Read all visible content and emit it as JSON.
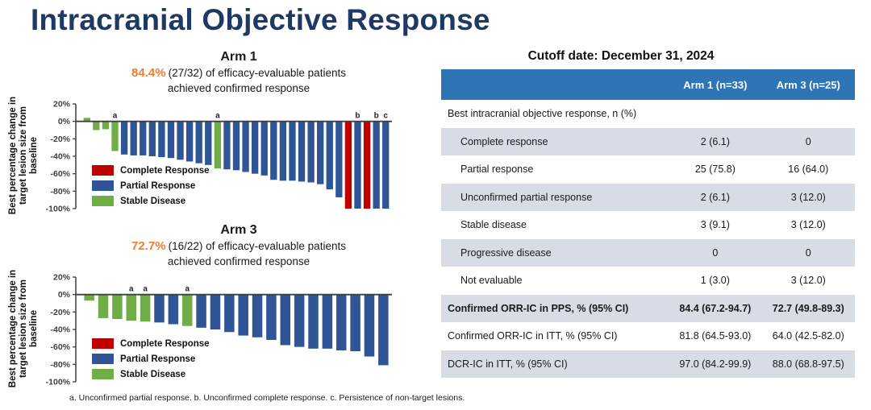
{
  "page": {
    "title": "Intracranial Objective Response"
  },
  "colors": {
    "CR": "#C00000",
    "PR": "#2F5597",
    "SD": "#70AD47",
    "axis": "#3F3F3F",
    "title_navy": "#1F3864",
    "accent_orange": "#ED7D31",
    "table_header_blue": "#2E75B6",
    "row_shade": "#D7DCE5"
  },
  "legend": [
    {
      "label": "Complete Response",
      "type": "CR"
    },
    {
      "label": "Partial Response",
      "type": "PR"
    },
    {
      "label": "Stable Disease",
      "type": "SD"
    }
  ],
  "chart_data": [
    {
      "type": "bar",
      "title": "Arm 1",
      "highlight": "84.4%",
      "subtitle": "(27/32) of efficacy-evaluable patients",
      "subtitle2": "achieved confirmed response",
      "ylabel_lines": [
        "Best percentage change in",
        "target lesion size from",
        "baseline"
      ],
      "ylabel": "Best percentage change in target lesion size from baseline",
      "yticks": [
        20,
        0,
        -20,
        -40,
        -60,
        -80,
        -100
      ],
      "ylim": [
        -100,
        20
      ],
      "grid": false,
      "values": [
        4,
        -10,
        -9,
        -34,
        -38,
        -39,
        -39,
        -40,
        -41,
        -42,
        -44,
        -46,
        -48,
        -50,
        -54,
        -55,
        -56,
        -58,
        -60,
        -62,
        -67,
        -68,
        -68,
        -69,
        -70,
        -72,
        -78,
        -87,
        -100,
        -100,
        -100,
        -100,
        -100
      ],
      "types": [
        "SD",
        "SD",
        "SD",
        "SD",
        "PR",
        "PR",
        "PR",
        "PR",
        "PR",
        "PR",
        "PR",
        "PR",
        "PR",
        "PR",
        "SD",
        "PR",
        "PR",
        "PR",
        "PR",
        "PR",
        "PR",
        "PR",
        "PR",
        "PR",
        "PR",
        "PR",
        "PR",
        "PR",
        "CR",
        "PR",
        "CR",
        "PR",
        "PR"
      ],
      "point_labels": {
        "3": "a",
        "14": "a",
        "29": "b",
        "31": "b",
        "32": "c"
      }
    },
    {
      "type": "bar",
      "title": "Arm 3",
      "highlight": "72.7%",
      "subtitle": "(16/22) of efficacy-evaluable patients",
      "subtitle2": "achieved confirmed response",
      "ylabel_lines": [
        "Best percentage change in",
        "target lesion size from",
        "baseline"
      ],
      "ylabel": "Best percentage change in target lesion size from baseline",
      "yticks": [
        20,
        0,
        -20,
        -40,
        -60,
        -80,
        -100
      ],
      "ylim": [
        -100,
        20
      ],
      "grid": false,
      "values": [
        -7,
        -27,
        -28,
        -30,
        -31,
        -32,
        -34,
        -36,
        -38,
        -40,
        -43,
        -47,
        -49,
        -52,
        -58,
        -60,
        -62,
        -62,
        -64,
        -65,
        -71,
        -81
      ],
      "types": [
        "SD",
        "SD",
        "SD",
        "SD",
        "SD",
        "PR",
        "PR",
        "SD",
        "PR",
        "PR",
        "PR",
        "PR",
        "PR",
        "PR",
        "PR",
        "PR",
        "PR",
        "PR",
        "PR",
        "PR",
        "PR",
        "PR"
      ],
      "point_labels": {
        "3": "a",
        "4": "a",
        "7": "a"
      }
    }
  ],
  "footnote": "a. Unconfirmed partial response. b. Unconfirmed complete response. c. Persistence of non-target lesions.",
  "cutoff_heading": "Cutoff date: December 31, 2024",
  "table": {
    "header": [
      "",
      "Arm 1 (n=33)",
      "Arm 3 (n=25)"
    ],
    "rows": [
      {
        "label": "Best intracranial objective response, n (%)",
        "arm1": "",
        "arm3": ""
      },
      {
        "label": "Complete response",
        "arm1": "2 (6.1)",
        "arm3": "0"
      },
      {
        "label": "Partial response",
        "arm1": "25 (75.8)",
        "arm3": "16 (64.0)"
      },
      {
        "label": "Unconfirmed partial response",
        "arm1": "2 (6.1)",
        "arm3": "3 (12.0)"
      },
      {
        "label": "Stable disease",
        "arm1": "3 (9.1)",
        "arm3": "3 (12.0)"
      },
      {
        "label": "Progressive disease",
        "arm1": "0",
        "arm3": "0"
      },
      {
        "label": "Not evaluable",
        "arm1": "1 (3.0)",
        "arm3": "3 (12.0)"
      },
      {
        "label": "Confirmed ORR-IC in PPS, % (95% CI)",
        "arm1": "84.4 (67.2-94.7)",
        "arm3": "72.7 (49.8-89.3)"
      },
      {
        "label": "Confirmed ORR-IC in ITT, % (95% CI)",
        "arm1": "81.8 (64.5-93.0)",
        "arm3": "64.0 (42.5-82.0)"
      },
      {
        "label": "DCR-IC in ITT, % (95% CI)",
        "arm1": "97.0 (84.2-99.9)",
        "arm3": "88.0 (68.8-97.5)"
      }
    ]
  }
}
